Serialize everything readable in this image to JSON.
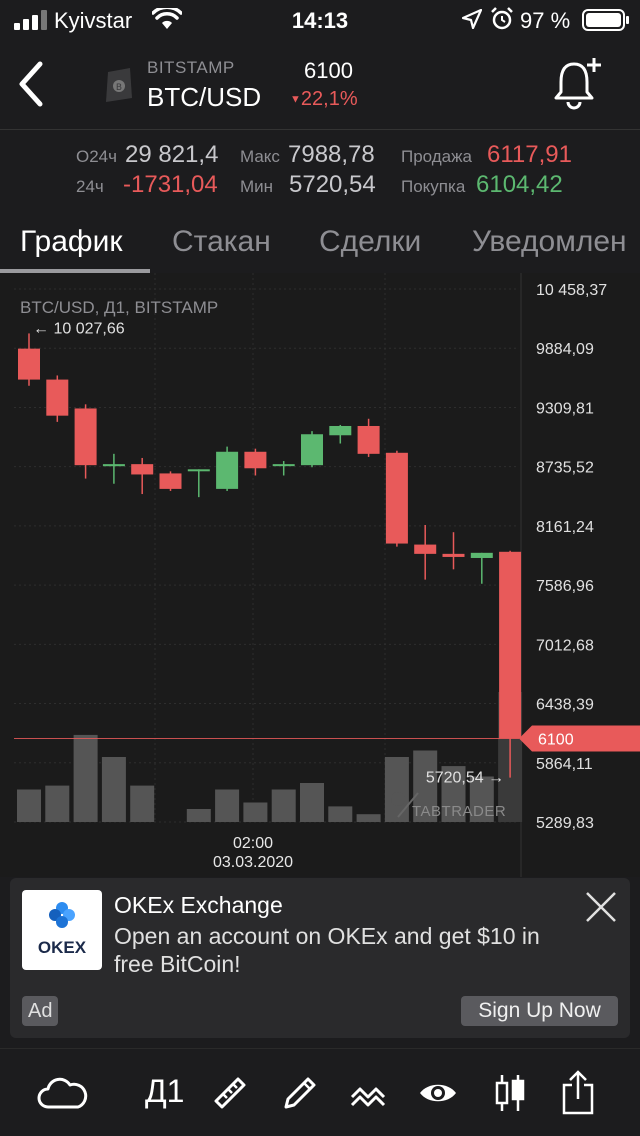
{
  "status_bar": {
    "carrier": "Kyivstar",
    "time": "14:13",
    "battery": "97 %",
    "icons": [
      "signal-icon",
      "wifi-icon",
      "location-icon",
      "alarm-icon",
      "battery-icon"
    ]
  },
  "header": {
    "exchange": "BITSTAMP",
    "pair": "BTC/USD",
    "price": "6100",
    "change": "22,1%",
    "change_color": "#e85a5a"
  },
  "stats": {
    "vol_label": "О24ч",
    "vol_value": "29 821,4",
    "chg_label": "24ч",
    "chg_value": "-1731,04",
    "max_label": "Макс",
    "max_value": "7988,78",
    "min_label": "Мин",
    "min_value": "5720,54",
    "sell_label": "Продажа",
    "sell_value": "6117,91",
    "buy_label": "Покупка",
    "buy_value": "6104,42"
  },
  "tabs": [
    {
      "label": "График",
      "active": true
    },
    {
      "label": "Стакан",
      "active": false
    },
    {
      "label": "Сделки",
      "active": false
    },
    {
      "label": "Уведомлен",
      "active": false
    }
  ],
  "chart_data": {
    "type": "candlestick",
    "title": "BTC/USD, Д1, BITSTAMP",
    "y_ticks": [
      10458.37,
      9884.09,
      9309.81,
      8735.52,
      8161.24,
      7586.96,
      7012.68,
      6438.39,
      5864.11,
      5289.83
    ],
    "y_tick_labels": [
      "10 458,37",
      "9884,09",
      "9309,81",
      "8735,52",
      "8161,24",
      "7586,96",
      "7012,68",
      "6438,39",
      "5864,11",
      "5289,83"
    ],
    "ylim": [
      5289.83,
      10458.37
    ],
    "max_marker": {
      "value": 10027.66,
      "label": "10 027,66"
    },
    "min_marker": {
      "value": 5720.54,
      "label": "5720,54"
    },
    "current_price": {
      "value": 6100,
      "label": "6100"
    },
    "x_label_time": "02:00",
    "x_label_date": "03.03.2020",
    "watermark": "TABTRADER",
    "up_color": "#5cb870",
    "down_color": "#e85a5a",
    "candles": [
      {
        "o": 9880,
        "h": 10027.66,
        "l": 9520,
        "c": 9580
      },
      {
        "o": 9580,
        "h": 9620,
        "l": 9170,
        "c": 9230
      },
      {
        "o": 9300,
        "h": 9340,
        "l": 8620,
        "c": 8750
      },
      {
        "o": 8740,
        "h": 8860,
        "l": 8570,
        "c": 8760
      },
      {
        "o": 8760,
        "h": 8820,
        "l": 8470,
        "c": 8660
      },
      {
        "o": 8670,
        "h": 8690,
        "l": 8500,
        "c": 8520
      },
      {
        "o": 8700,
        "h": 8710,
        "l": 8440,
        "c": 8710
      },
      {
        "o": 8520,
        "h": 8930,
        "l": 8500,
        "c": 8880
      },
      {
        "o": 8880,
        "h": 8910,
        "l": 8650,
        "c": 8720
      },
      {
        "o": 8760,
        "h": 8790,
        "l": 8650,
        "c": 8760
      },
      {
        "o": 8750,
        "h": 9080,
        "l": 8730,
        "c": 9050
      },
      {
        "o": 9040,
        "h": 9140,
        "l": 8960,
        "c": 9130
      },
      {
        "o": 9130,
        "h": 9200,
        "l": 8830,
        "c": 8860
      },
      {
        "o": 8870,
        "h": 8890,
        "l": 7960,
        "c": 7990
      },
      {
        "o": 7980,
        "h": 8170,
        "l": 7640,
        "c": 7890
      },
      {
        "o": 7890,
        "h": 8100,
        "l": 7740,
        "c": 7860
      },
      {
        "o": 7850,
        "h": 7900,
        "l": 7600,
        "c": 7900
      },
      {
        "o": 7910,
        "h": 7920,
        "l": 5720.54,
        "c": 6100
      }
    ],
    "volumes": [
      0.25,
      0.28,
      0.67,
      0.5,
      0.28,
      0,
      0.1,
      0.25,
      0.15,
      0.25,
      0.3,
      0.12,
      0.06,
      0.5,
      0.55,
      0.43,
      0.35,
      1.0
    ]
  },
  "ad": {
    "brand": "OKEX",
    "title": "OKEx Exchange",
    "body": "Open an account on OKEx and get $10 in free BitCoin!",
    "badge": "Ad",
    "cta": "Sign Up Now"
  },
  "toolbar": {
    "interval": "Д1",
    "icons": [
      "cloud-icon",
      "ruler-icon",
      "pencil-icon",
      "indicators-icon",
      "eye-icon",
      "candles-icon",
      "share-icon"
    ]
  }
}
